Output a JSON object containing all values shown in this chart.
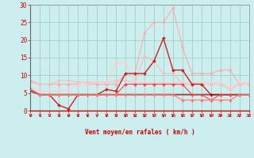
{
  "x": [
    0,
    1,
    2,
    3,
    4,
    5,
    6,
    7,
    8,
    9,
    10,
    11,
    12,
    13,
    14,
    15,
    16,
    17,
    18,
    19,
    20,
    21,
    22,
    23
  ],
  "series": [
    {
      "y": [
        8.5,
        7.5,
        7.5,
        7.5,
        7.5,
        7.5,
        7.5,
        7.5,
        7.5,
        7.5,
        10.5,
        10.5,
        22.0,
        25.0,
        25.0,
        29.0,
        18.0,
        10.5,
        10.5,
        10.5,
        11.5,
        11.5,
        7.5,
        7.5
      ],
      "color": "#ffaaaa",
      "marker": "D",
      "markersize": 2.0,
      "linewidth": 0.8
    },
    {
      "y": [
        8.0,
        7.5,
        7.5,
        8.5,
        8.5,
        8.0,
        8.0,
        8.0,
        8.0,
        8.5,
        8.5,
        8.0,
        15.5,
        14.0,
        10.5,
        10.5,
        7.5,
        7.5,
        7.5,
        7.5,
        7.5,
        6.0,
        7.5,
        7.5
      ],
      "color": "#ffbbbb",
      "marker": "D",
      "markersize": 2.0,
      "linewidth": 0.8
    },
    {
      "y": [
        6.5,
        5.5,
        5.5,
        5.5,
        6.0,
        7.5,
        7.5,
        8.0,
        8.0,
        13.5,
        13.5,
        8.0,
        8.0,
        8.0,
        8.0,
        8.0,
        8.0,
        8.0,
        8.0,
        8.0,
        8.0,
        6.5,
        8.0,
        8.0
      ],
      "color": "#ffcccc",
      "marker": "D",
      "markersize": 2.0,
      "linewidth": 0.8
    },
    {
      "y": [
        6.0,
        4.5,
        4.5,
        1.5,
        0.5,
        4.5,
        4.5,
        4.5,
        6.0,
        5.5,
        10.5,
        10.5,
        10.5,
        14.0,
        20.5,
        11.5,
        11.5,
        7.5,
        7.5,
        4.5,
        4.5,
        4.5,
        4.5,
        4.5
      ],
      "color": "#cc2222",
      "marker": "D",
      "markersize": 2.0,
      "linewidth": 1.0
    },
    {
      "y": [
        5.5,
        4.5,
        4.5,
        4.5,
        4.5,
        4.5,
        4.5,
        4.5,
        4.5,
        4.5,
        4.5,
        4.5,
        4.5,
        4.5,
        4.5,
        4.5,
        4.5,
        4.5,
        4.5,
        4.5,
        4.5,
        4.5,
        4.5,
        4.5
      ],
      "color": "#aa0000",
      "marker": null,
      "markersize": 0,
      "linewidth": 0.9
    },
    {
      "y": [
        6.0,
        4.5,
        4.5,
        4.5,
        4.5,
        4.5,
        4.5,
        4.5,
        4.5,
        4.5,
        7.5,
        7.5,
        7.5,
        7.5,
        7.5,
        7.5,
        7.5,
        4.5,
        4.5,
        3.0,
        4.5,
        4.5,
        4.5,
        4.5
      ],
      "color": "#ff4444",
      "marker": "D",
      "markersize": 2.0,
      "linewidth": 0.8
    },
    {
      "y": [
        6.0,
        4.5,
        4.5,
        4.5,
        4.5,
        4.5,
        4.5,
        4.5,
        4.5,
        4.5,
        4.5,
        4.5,
        4.5,
        4.5,
        4.5,
        4.5,
        3.0,
        3.0,
        3.0,
        3.0,
        3.0,
        3.0,
        4.5,
        4.5
      ],
      "color": "#ff7777",
      "marker": "D",
      "markersize": 2.0,
      "linewidth": 0.8
    }
  ],
  "xlabel": "Vent moyen/en rafales ( km/h )",
  "ylim": [
    0,
    30
  ],
  "xlim": [
    0,
    23
  ],
  "yticks": [
    0,
    5,
    10,
    15,
    20,
    25,
    30
  ],
  "xticks": [
    0,
    1,
    2,
    3,
    4,
    5,
    6,
    7,
    8,
    9,
    10,
    11,
    12,
    13,
    14,
    15,
    16,
    17,
    18,
    19,
    20,
    21,
    22,
    23
  ],
  "bg_color": "#cceeee",
  "grid_color": "#99ccbb",
  "arrow_color": "#cc0000",
  "tick_label_color": "#cc0000",
  "xlabel_color": "#cc0000",
  "ytick_color": "#cc0000"
}
